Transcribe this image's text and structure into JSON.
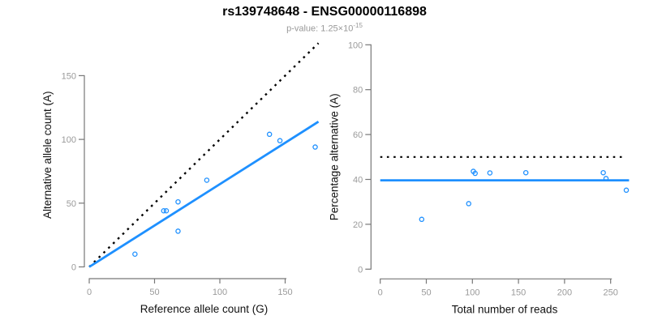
{
  "header": {
    "title": "rs139748648 - ENSG00000116898",
    "subtitle_base": "p-value: 1.25×10",
    "subtitle_exponent": "-15"
  },
  "colors": {
    "point": "#1E90FF",
    "fit_line": "#1E90FF",
    "reference_line": "#000000",
    "axis": "#777777",
    "tick_label": "#9a9a9a",
    "axis_title": "#111111",
    "title": "#000000",
    "subtitle": "#999999"
  },
  "chart_data": [
    {
      "type": "scatter",
      "name": "allele-counts-plot",
      "xlabel": "Reference allele count (G)",
      "ylabel": "Alternative allele count (A)",
      "xlim": [
        0,
        175.5
      ],
      "ylim": [
        0,
        175.5
      ],
      "xticks": [
        0,
        50,
        100,
        150
      ],
      "yticks": [
        0,
        50,
        100,
        150
      ],
      "grid": false,
      "points": [
        [
          35,
          10
        ],
        [
          57,
          44
        ],
        [
          59,
          44
        ],
        [
          68,
          28
        ],
        [
          68,
          51
        ],
        [
          90,
          68
        ],
        [
          138,
          104
        ],
        [
          146,
          99
        ],
        [
          173,
          94
        ]
      ],
      "lines": [
        {
          "name": "identity-line",
          "style": "dotted",
          "colorKey": "reference_line",
          "width": 2.4,
          "x1": 0,
          "y1": 0,
          "x2": 175.5,
          "y2": 175.5
        },
        {
          "name": "fit-line",
          "style": "solid",
          "colorKey": "fit_line",
          "width": 2.8,
          "x1": 0,
          "y1": 0,
          "x2": 175.5,
          "y2": 113.9
        }
      ]
    },
    {
      "type": "scatter",
      "name": "percentage-alternative-plot",
      "xlabel": "Total number of reads",
      "ylabel": "Percentage alternative (A)",
      "xlim": [
        0,
        270
      ],
      "ylim": [
        0,
        100
      ],
      "xticks": [
        0,
        50,
        100,
        150,
        200,
        250
      ],
      "yticks": [
        0,
        20,
        40,
        60,
        80,
        100
      ],
      "grid": false,
      "points": [
        [
          45,
          22.2
        ],
        [
          96,
          29.2
        ],
        [
          101,
          43.6
        ],
        [
          103,
          42.7
        ],
        [
          119,
          42.9
        ],
        [
          158,
          43.0
        ],
        [
          242,
          43.0
        ],
        [
          245,
          40.4
        ],
        [
          267,
          35.2
        ]
      ],
      "lines": [
        {
          "name": "fifty-percent-line",
          "style": "dotted",
          "colorKey": "reference_line",
          "width": 2.2,
          "x1": 0,
          "y1": 50,
          "x2": 263,
          "y2": 50
        },
        {
          "name": "mean-percentage-line",
          "style": "solid",
          "colorKey": "fit_line",
          "width": 2.8,
          "x1": 0,
          "y1": 39.6,
          "x2": 270,
          "y2": 39.6
        }
      ]
    }
  ]
}
